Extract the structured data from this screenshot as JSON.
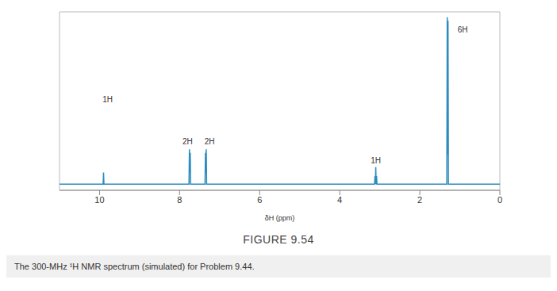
{
  "chart_data": {
    "type": "line",
    "title": "FIGURE 9.54",
    "subtitle": "The 300-MHz ¹H NMR spectrum (simulated) for Problem 9.44.",
    "x_label": "δH (ppm)",
    "x": [
      11,
      9.91,
      9.9,
      9.89,
      7.765,
      7.755,
      7.745,
      7.735,
      7.725,
      7.365,
      7.355,
      7.345,
      7.335,
      7.325,
      3.13,
      3.12,
      3.11,
      3.1,
      3.09,
      3.08,
      3.07,
      1.325,
      1.315,
      1.305,
      1.295,
      1.285,
      0
    ],
    "values": [
      3.5,
      3.5,
      10,
      3.5,
      3.5,
      23,
      10,
      21,
      3.5,
      3.5,
      21,
      10,
      23,
      3.5,
      3.5,
      8,
      3.5,
      13,
      3.5,
      8,
      3.5,
      3.5,
      97,
      20,
      95,
      3.5,
      3.5
    ],
    "color": "#2b8cbe",
    "xlim": [
      11,
      0
    ],
    "xticks": [
      0,
      2,
      4,
      6,
      8,
      10
    ],
    "ylim": [
      0,
      100
    ],
    "tick_labels": "x",
    "grid": false,
    "annotations": [
      {
        "text": "1H",
        "x": 9.8,
        "y": 51
      },
      {
        "text": "2H",
        "x": 7.8,
        "y": 27.5
      },
      {
        "text": "2H",
        "x": 7.25,
        "y": 27.5
      },
      {
        "text": "1H",
        "x": 3.1,
        "y": 16.5
      },
      {
        "text": "6H",
        "x": 0.93,
        "y": 90
      }
    ]
  }
}
